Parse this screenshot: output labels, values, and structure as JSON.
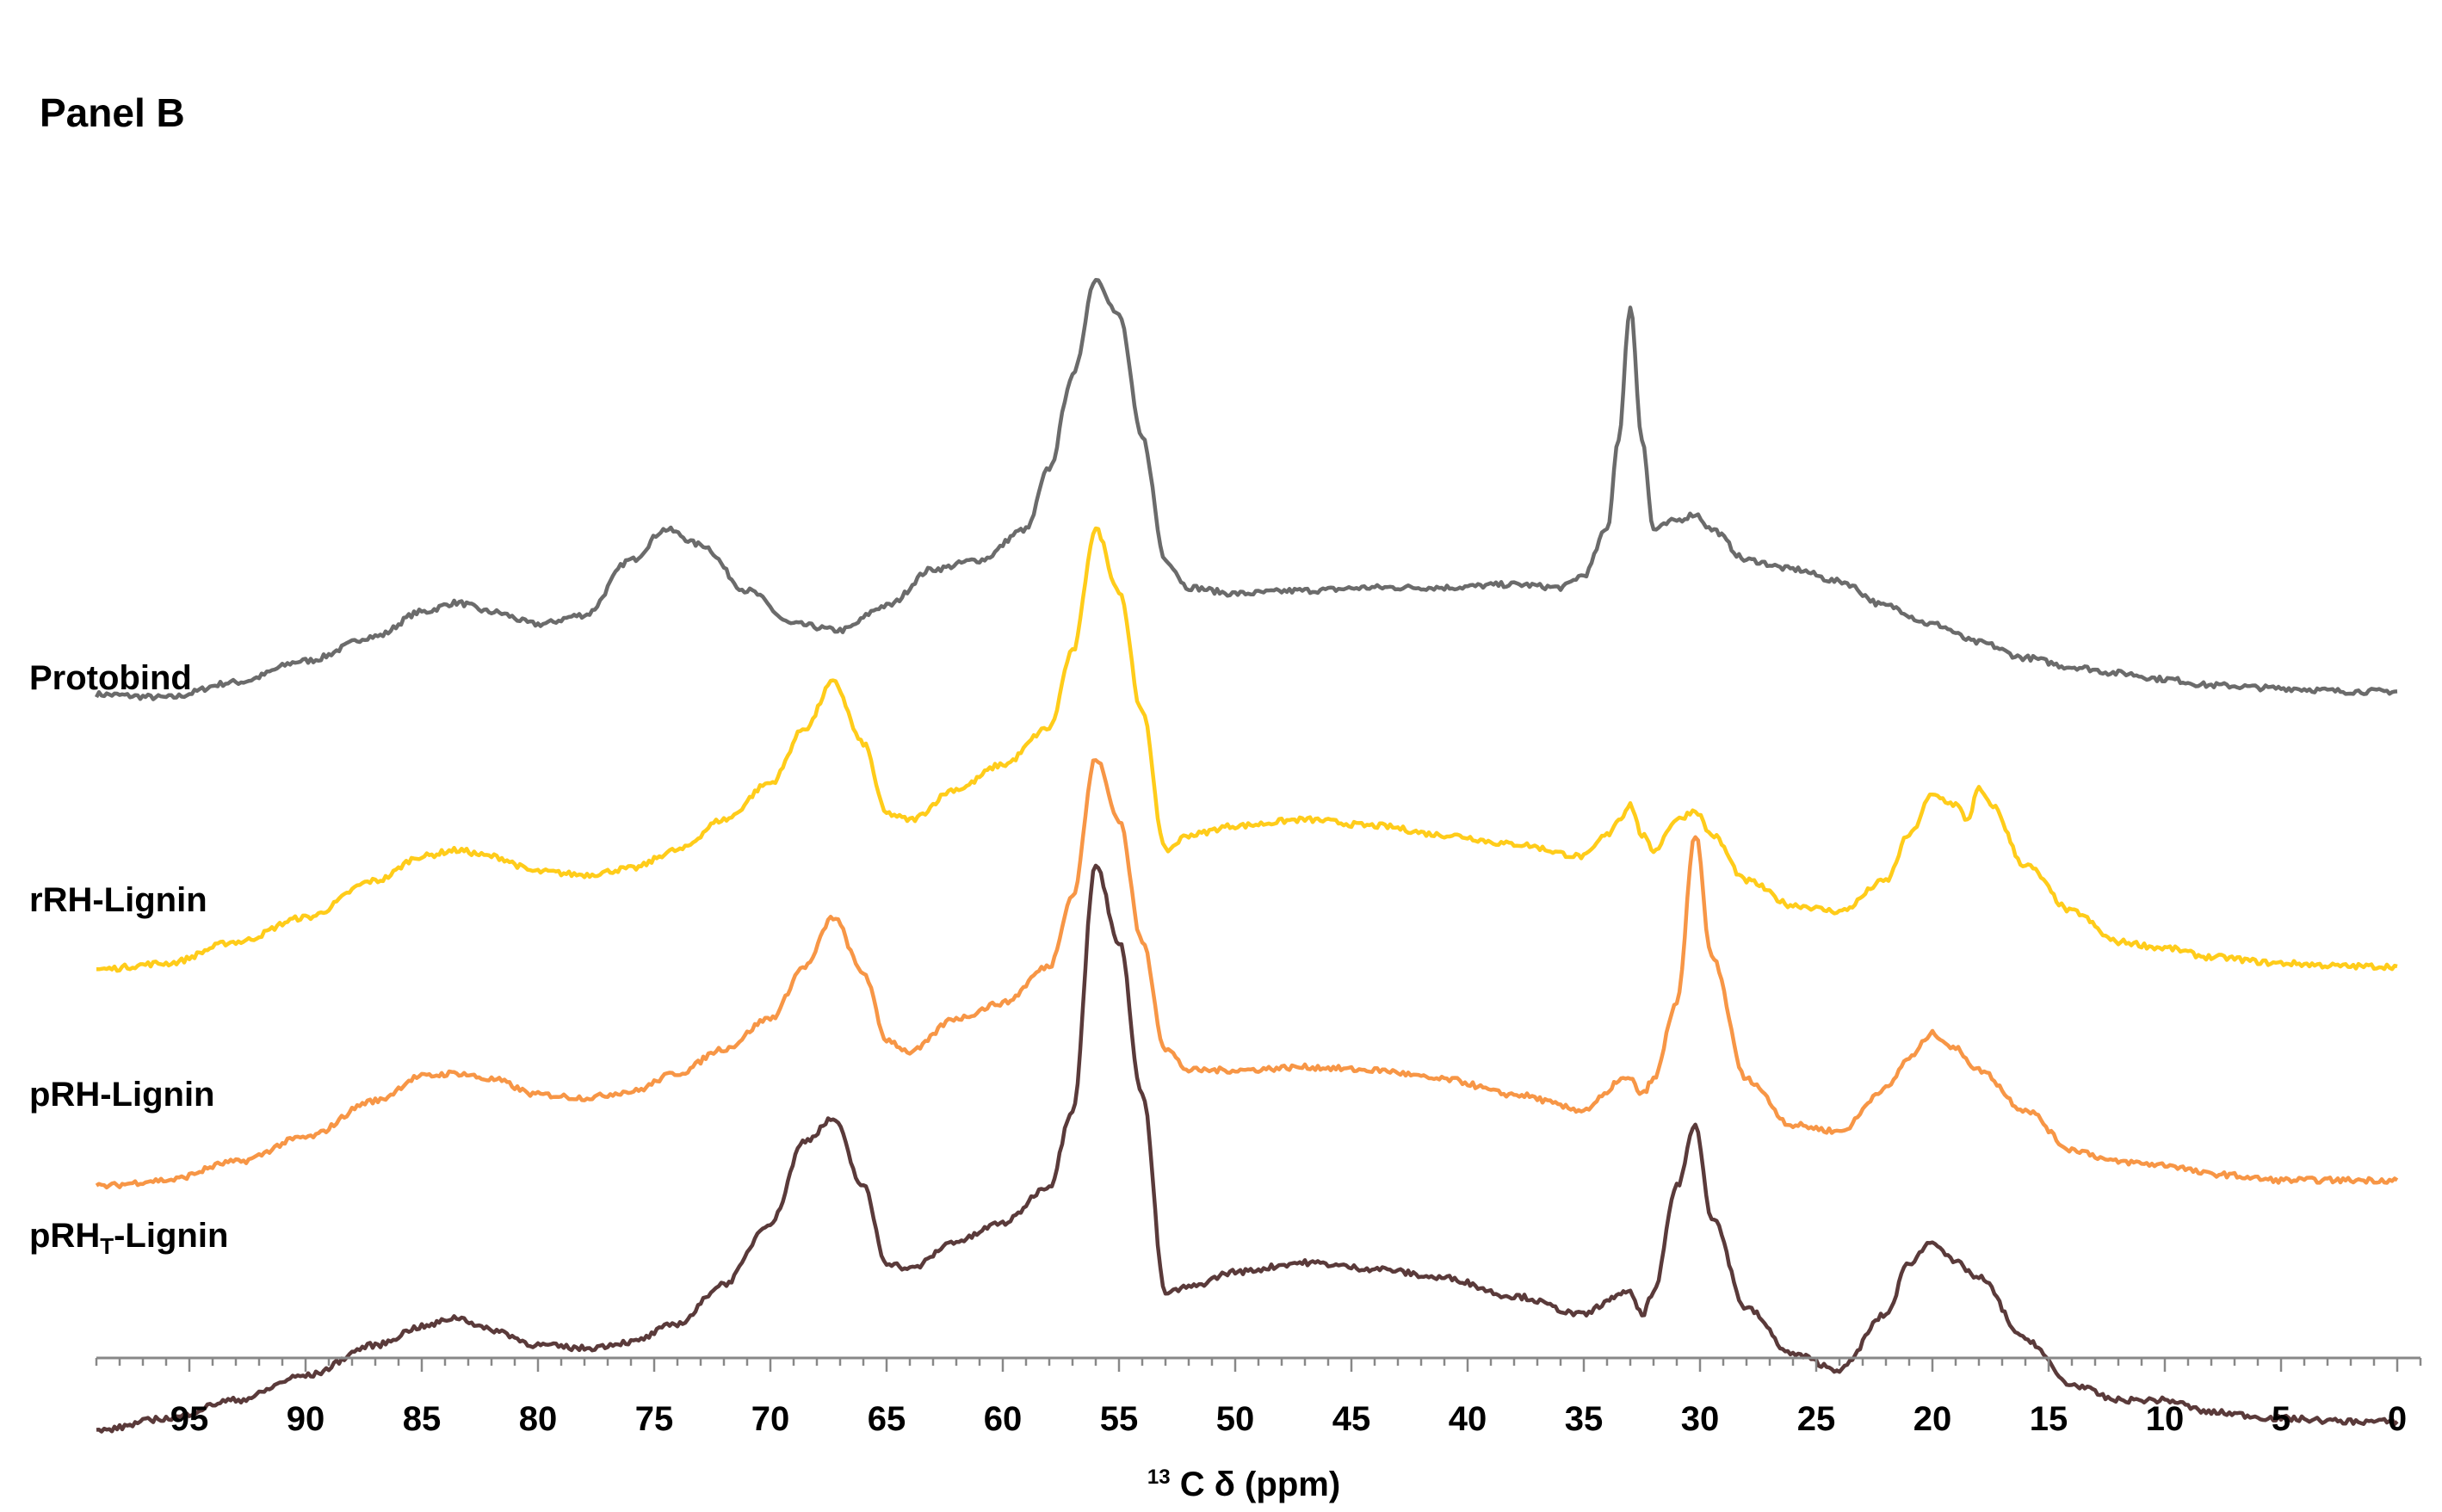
{
  "chart_data": {
    "type": "line",
    "title": "Panel B",
    "xlabel_sup": "13",
    "xlabel_main": "C δ (ppm)",
    "xlim": [
      99,
      -1
    ],
    "x_ticks": [
      95,
      90,
      85,
      80,
      75,
      70,
      65,
      60,
      55,
      50,
      45,
      40,
      35,
      30,
      25,
      20,
      15,
      10,
      5,
      0
    ],
    "grid": false,
    "legend": "labels-left",
    "series": [
      {
        "name": "Protobind",
        "color": "#6b6b6b",
        "x": [
          99,
          96,
          93,
          90,
          87,
          85,
          83.5,
          82,
          80,
          78,
          76,
          74.5,
          73,
          71,
          69,
          67,
          65,
          63,
          61,
          59,
          58,
          57,
          56,
          55,
          54,
          53,
          52,
          50,
          47,
          44,
          41,
          38,
          36,
          35,
          34,
          33.5,
          33,
          32.5,
          32,
          31,
          30.2,
          29.5,
          28,
          26,
          24,
          22,
          20,
          18,
          16,
          14,
          12,
          10,
          8,
          5,
          2,
          0
        ],
        "y": [
          0.01,
          0.0,
          0.05,
          0.12,
          0.2,
          0.28,
          0.31,
          0.28,
          0.24,
          0.27,
          0.45,
          0.55,
          0.5,
          0.35,
          0.24,
          0.22,
          0.3,
          0.42,
          0.45,
          0.55,
          0.75,
          1.05,
          1.37,
          1.25,
          0.85,
          0.45,
          0.36,
          0.34,
          0.35,
          0.36,
          0.36,
          0.37,
          0.36,
          0.4,
          0.55,
          0.85,
          1.28,
          0.85,
          0.55,
          0.58,
          0.6,
          0.55,
          0.45,
          0.42,
          0.38,
          0.3,
          0.24,
          0.18,
          0.13,
          0.1,
          0.08,
          0.06,
          0.04,
          0.03,
          0.02,
          0.02
        ],
        "offset": 0.9
      },
      {
        "name": "rRH-Lignin",
        "color": "#ffcc1a",
        "x": [
          99,
          96,
          93,
          90,
          87,
          85,
          83.5,
          82,
          80,
          78,
          76,
          74,
          72,
          70,
          68.5,
          67.3,
          66,
          65,
          64,
          62,
          60,
          58,
          57,
          56,
          55,
          54,
          53,
          52,
          50,
          47,
          44,
          41,
          38,
          35,
          34,
          33.5,
          33,
          32.5,
          32,
          31,
          30.2,
          29.5,
          28,
          26,
          24,
          22,
          21,
          20,
          19,
          18.5,
          18,
          17.5,
          16,
          14,
          12,
          10,
          8,
          5,
          2,
          0
        ],
        "y": [
          0.01,
          0.03,
          0.1,
          0.18,
          0.3,
          0.38,
          0.4,
          0.38,
          0.33,
          0.32,
          0.34,
          0.4,
          0.5,
          0.62,
          0.8,
          0.95,
          0.75,
          0.52,
          0.5,
          0.6,
          0.68,
          0.8,
          1.05,
          1.45,
          1.25,
          0.85,
          0.4,
          0.45,
          0.48,
          0.5,
          0.48,
          0.45,
          0.42,
          0.38,
          0.45,
          0.5,
          0.55,
          0.45,
          0.4,
          0.5,
          0.53,
          0.45,
          0.3,
          0.22,
          0.2,
          0.3,
          0.45,
          0.58,
          0.55,
          0.5,
          0.6,
          0.55,
          0.35,
          0.2,
          0.1,
          0.08,
          0.05,
          0.03,
          0.02,
          0.02
        ],
        "offset": 0.0
      },
      {
        "name": "pRH-Lignin",
        "color": "#f79646",
        "x": [
          99,
          96,
          93,
          90,
          87,
          85,
          83.5,
          82,
          80,
          78,
          76,
          74,
          72,
          70,
          68.5,
          67.3,
          66,
          65,
          64,
          62,
          60,
          58,
          57,
          56,
          55,
          54,
          53,
          52,
          50,
          47,
          44,
          41,
          38,
          35,
          34,
          33.5,
          33,
          32.5,
          32,
          31,
          30.2,
          29.5,
          28,
          26,
          24,
          22,
          21,
          20,
          19,
          18,
          16,
          14,
          12,
          10,
          8,
          5,
          2,
          0
        ],
        "y": [
          0.0,
          0.02,
          0.08,
          0.16,
          0.28,
          0.36,
          0.37,
          0.35,
          0.3,
          0.29,
          0.31,
          0.37,
          0.45,
          0.55,
          0.72,
          0.88,
          0.7,
          0.48,
          0.44,
          0.55,
          0.6,
          0.72,
          0.95,
          1.4,
          1.2,
          0.8,
          0.45,
          0.38,
          0.38,
          0.39,
          0.38,
          0.35,
          0.3,
          0.25,
          0.3,
          0.35,
          0.35,
          0.3,
          0.35,
          0.6,
          1.15,
          0.75,
          0.35,
          0.2,
          0.18,
          0.32,
          0.42,
          0.5,
          0.45,
          0.38,
          0.25,
          0.12,
          0.08,
          0.07,
          0.04,
          0.02,
          0.02,
          0.02
        ],
        "offset": -0.7
      },
      {
        "name": "pRHT-Lignin",
        "name_base": "pRH",
        "name_sub": "T",
        "name_suffix": "-Lignin",
        "color": "#5a3a3a",
        "x": [
          99,
          96,
          93,
          90,
          87,
          85,
          83.5,
          82,
          80,
          78,
          76,
          74,
          72,
          70,
          68.5,
          67.3,
          66,
          65,
          64,
          62,
          60,
          58,
          57,
          56,
          55,
          54,
          53,
          52,
          50,
          47,
          44,
          41,
          38,
          35,
          34,
          33.5,
          33,
          32.5,
          32,
          31,
          30.2,
          29.5,
          28,
          26,
          24,
          22,
          21,
          20,
          19,
          18,
          16,
          14,
          12,
          10,
          8,
          5,
          2,
          0
        ],
        "y": [
          0.0,
          0.04,
          0.1,
          0.18,
          0.28,
          0.34,
          0.37,
          0.33,
          0.28,
          0.27,
          0.29,
          0.35,
          0.48,
          0.68,
          0.95,
          1.02,
          0.8,
          0.55,
          0.53,
          0.62,
          0.68,
          0.8,
          1.05,
          1.85,
          1.6,
          1.1,
          0.45,
          0.47,
          0.52,
          0.55,
          0.53,
          0.5,
          0.44,
          0.38,
          0.42,
          0.45,
          0.45,
          0.38,
          0.45,
          0.8,
          1.0,
          0.7,
          0.4,
          0.25,
          0.2,
          0.38,
          0.55,
          0.62,
          0.55,
          0.5,
          0.3,
          0.15,
          0.1,
          0.1,
          0.06,
          0.04,
          0.03,
          0.03
        ],
        "offset": -1.5
      }
    ]
  }
}
